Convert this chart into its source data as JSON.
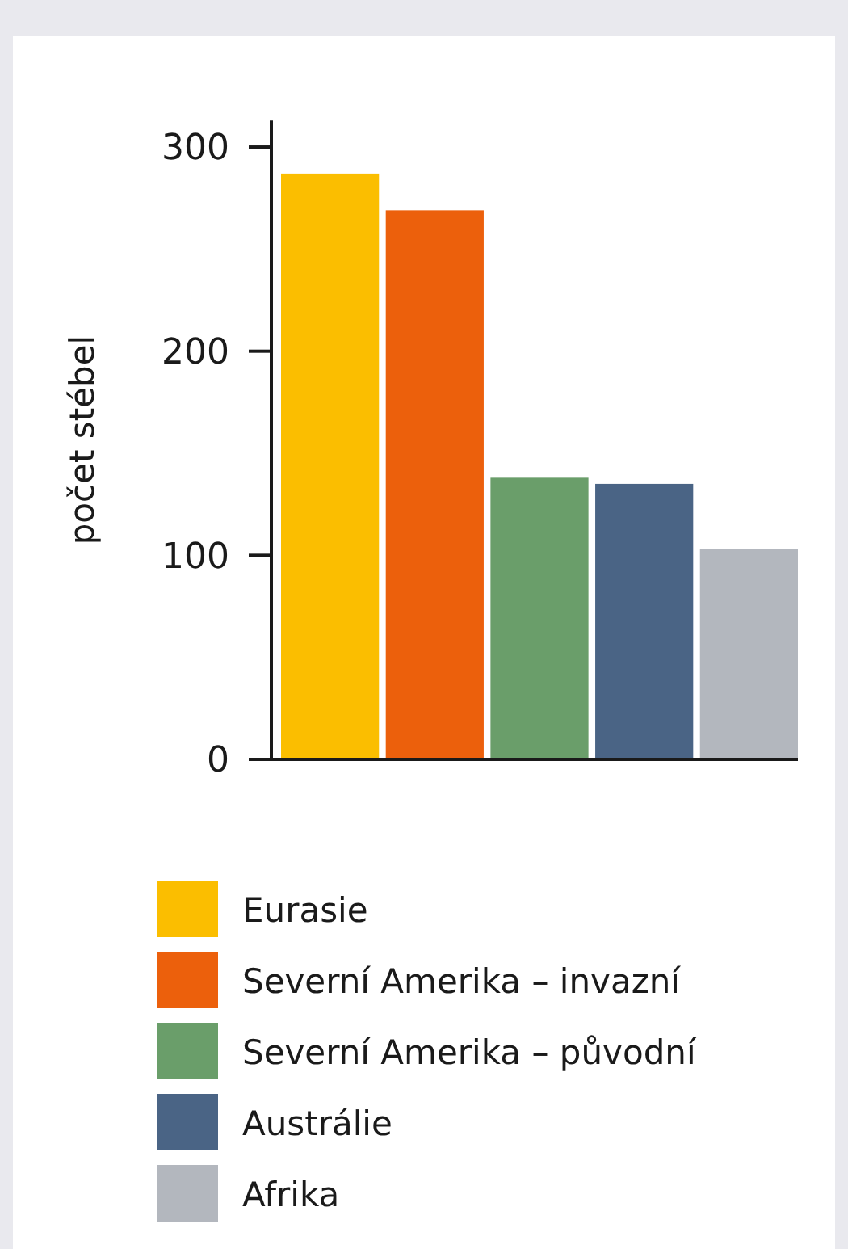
{
  "chart_data": {
    "type": "bar",
    "ylabel": "počet stébel",
    "stacked": true,
    "categories": [
      null,
      null,
      null,
      null,
      null
    ],
    "series": [
      {
        "name": "Eurasie",
        "color": "#fbbe00",
        "values": [
          287,
          null,
          null,
          null,
          null
        ]
      },
      {
        "name": "Severní Amerika – invazní",
        "color": "#ec600c",
        "values": [
          null,
          269,
          null,
          null,
          null
        ]
      },
      {
        "name": "Severní Amerika – původní",
        "color": "#6a9e6a",
        "values": [
          null,
          null,
          138,
          null,
          null
        ]
      },
      {
        "name": "Austrálie",
        "color": "#4a6485",
        "values": [
          null,
          null,
          null,
          135,
          null
        ]
      },
      {
        "name": "Afrika",
        "color": "#b3b7be",
        "values": [
          null,
          null,
          null,
          null,
          103
        ]
      }
    ],
    "ylim": [
      0,
      313
    ],
    "yticks": [
      0,
      100,
      200,
      300
    ],
    "tick_labels": "y",
    "legend": "bottom",
    "grid": false
  }
}
